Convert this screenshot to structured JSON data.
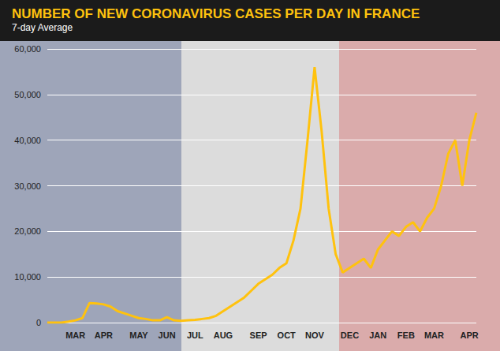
{
  "chart_data": {
    "type": "line",
    "title": "NUMBER OF NEW CORONAVIRUS CASES PER DAY IN FRANCE",
    "subtitle": "7-day Average",
    "categories": [
      null,
      null,
      null,
      null,
      "MAR",
      null,
      null,
      null,
      "APR",
      null,
      null,
      null,
      null,
      "MAY",
      null,
      null,
      null,
      "JUN",
      null,
      null,
      null,
      "JUL",
      null,
      null,
      null,
      "AUG",
      null,
      null,
      null,
      null,
      "SEP",
      null,
      null,
      null,
      "OCT",
      null,
      null,
      null,
      "NOV",
      null,
      null,
      null,
      null,
      "DEC",
      null,
      null,
      null,
      "JAN",
      null,
      null,
      null,
      "FEB",
      null,
      null,
      null,
      "MAR",
      null,
      null,
      null,
      null,
      "APR",
      null
    ],
    "values": [
      0,
      0,
      0,
      200,
      500,
      1000,
      4300,
      4200,
      4000,
      3500,
      2500,
      2000,
      1500,
      1000,
      800,
      500,
      500,
      1200,
      500,
      400,
      500,
      600,
      800,
      1000,
      1500,
      2500,
      3500,
      4500,
      5500,
      7000,
      8500,
      9500,
      10500,
      12000,
      13000,
      18000,
      25000,
      40000,
      56000,
      42000,
      25000,
      15000,
      11000,
      12000,
      13000,
      14000,
      12000,
      16000,
      18000,
      20000,
      19000,
      21000,
      22000,
      20000,
      23000,
      25000,
      30000,
      37000,
      40000,
      30000,
      40000,
      46000
    ],
    "color": "#ffc20e",
    "ylim": [
      0,
      60000
    ],
    "yticks": [
      0,
      {
        "value": 10000,
        "label": "10,000"
      },
      {
        "value": 20000,
        "label": "20,000"
      },
      {
        "value": 30000,
        "label": "30,000"
      },
      {
        "value": 40000,
        "label": "40,000"
      },
      {
        "value": 50000,
        "label": "50,000"
      },
      {
        "value": 60000,
        "label": "60,000"
      }
    ],
    "grid": true
  }
}
